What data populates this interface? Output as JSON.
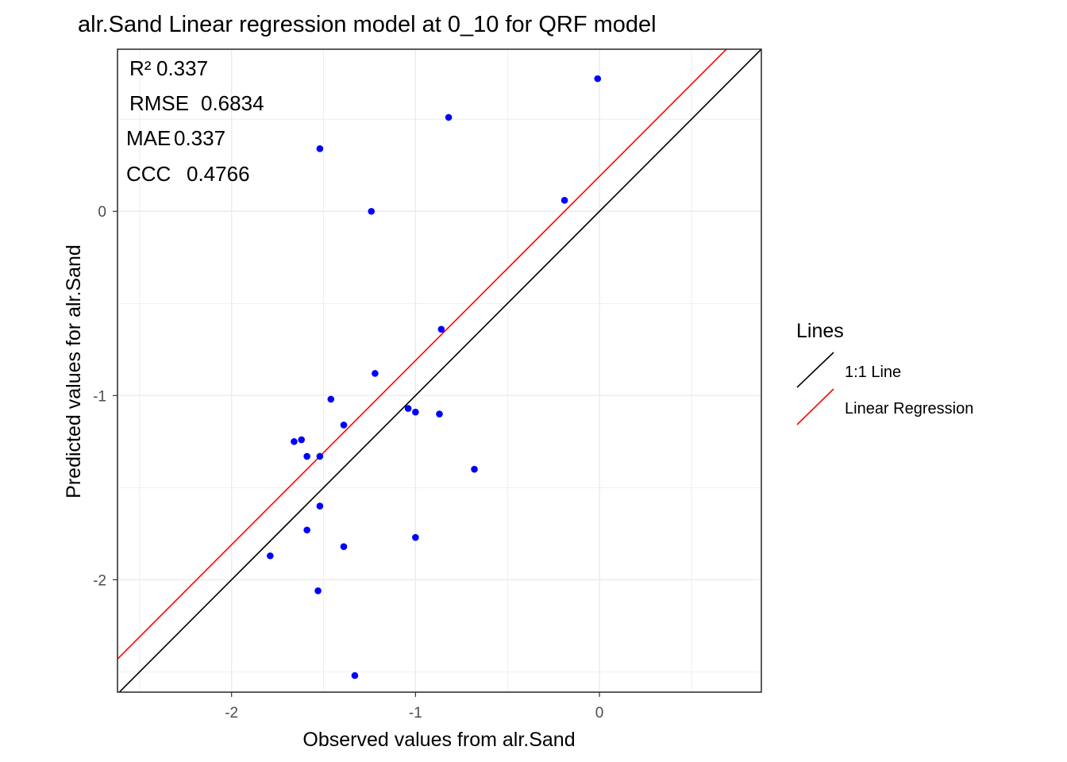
{
  "chart_data": {
    "type": "scatter",
    "title": "alr.Sand  Linear regression model at  0_10  for  QRF  model",
    "xlabel": "Observed values from alr.Sand",
    "ylabel": "Predicted values for alr.Sand",
    "xlim": [
      -2.62,
      0.88
    ],
    "ylim": [
      -2.61,
      0.88
    ],
    "x_ticks": [
      -2,
      -1,
      0
    ],
    "y_ticks": [
      -2,
      -1,
      0
    ],
    "x_tick_labels": [
      "-2",
      "-1",
      "0"
    ],
    "y_tick_labels": [
      "-2",
      "-1",
      "0"
    ],
    "grid": true,
    "point_color": "#0000ff",
    "points": [
      {
        "x": -0.01,
        "y": 0.72
      },
      {
        "x": -0.82,
        "y": 0.51
      },
      {
        "x": -1.52,
        "y": 0.34
      },
      {
        "x": -0.19,
        "y": 0.06
      },
      {
        "x": -1.24,
        "y": 0.0
      },
      {
        "x": -0.86,
        "y": -0.64
      },
      {
        "x": -1.22,
        "y": -0.88
      },
      {
        "x": -1.46,
        "y": -1.02
      },
      {
        "x": -1.04,
        "y": -1.07
      },
      {
        "x": -1.0,
        "y": -1.09
      },
      {
        "x": -0.87,
        "y": -1.1
      },
      {
        "x": -1.39,
        "y": -1.16
      },
      {
        "x": -1.66,
        "y": -1.25
      },
      {
        "x": -1.62,
        "y": -1.24
      },
      {
        "x": -1.59,
        "y": -1.33
      },
      {
        "x": -1.52,
        "y": -1.33
      },
      {
        "x": -0.68,
        "y": -1.4
      },
      {
        "x": -1.52,
        "y": -1.6
      },
      {
        "x": -1.59,
        "y": -1.73
      },
      {
        "x": -1.0,
        "y": -1.77
      },
      {
        "x": -1.39,
        "y": -1.82
      },
      {
        "x": -1.79,
        "y": -1.87
      },
      {
        "x": -1.53,
        "y": -2.06
      },
      {
        "x": -1.33,
        "y": -2.52
      }
    ],
    "lines": [
      {
        "name": "1:1 Line",
        "color": "#000000",
        "intercept": 0,
        "slope": 1
      },
      {
        "name": "Linear Regression",
        "color": "#ff0000",
        "intercept": 0.19,
        "slope": 1
      }
    ],
    "annotations": [
      {
        "label": "R²",
        "value": "0.337"
      },
      {
        "label": "RMSE",
        "value": "0.6834"
      },
      {
        "label": "MAE",
        "value": "0.337"
      },
      {
        "label": "CCC",
        "value": "0.4766"
      }
    ],
    "legend": {
      "title": "Lines",
      "placement": "right",
      "items": [
        {
          "label": "1:1 Line",
          "color": "#000000"
        },
        {
          "label": "Linear Regression",
          "color": "#ff0000"
        }
      ]
    }
  }
}
